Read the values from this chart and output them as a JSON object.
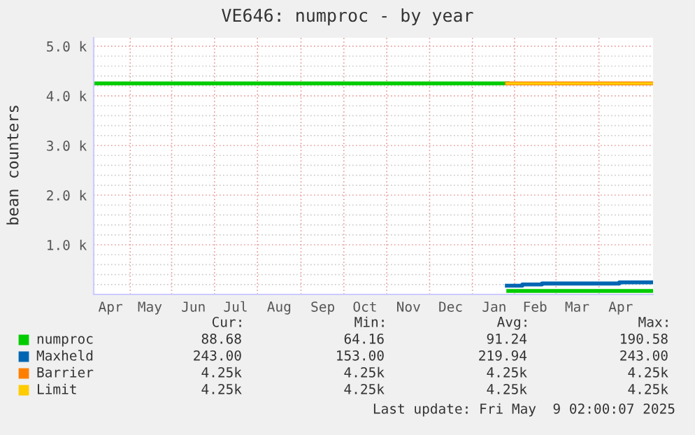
{
  "chart_data": {
    "type": "step",
    "title": "VE646: numproc - by year",
    "ylabel": "bean counters",
    "xlim": [
      "2024-04-06",
      "2025-05-09"
    ],
    "ylim": [
      0,
      5170
    ],
    "yticks": [
      {
        "value": 1000,
        "label": "1.0 k"
      },
      {
        "value": 2000,
        "label": "2.0 k"
      },
      {
        "value": 3000,
        "label": "3.0 k"
      },
      {
        "value": 4000,
        "label": "4.0 k"
      },
      {
        "value": 5000,
        "label": "5.0 k"
      }
    ],
    "xticks": [
      {
        "value": "2024-04-18",
        "label": "Apr"
      },
      {
        "value": "2024-05-16",
        "label": "May"
      },
      {
        "value": "2024-06-16",
        "label": "Jun"
      },
      {
        "value": "2024-07-16",
        "label": "Jul"
      },
      {
        "value": "2024-08-16",
        "label": "Aug"
      },
      {
        "value": "2024-09-16",
        "label": "Sep"
      },
      {
        "value": "2024-10-16",
        "label": "Oct"
      },
      {
        "value": "2024-11-16",
        "label": "Nov"
      },
      {
        "value": "2024-12-16",
        "label": "Dec"
      },
      {
        "value": "2025-01-16",
        "label": "Jan"
      },
      {
        "value": "2025-02-14",
        "label": "Feb"
      },
      {
        "value": "2025-03-16",
        "label": "Mar"
      },
      {
        "value": "2025-04-16",
        "label": "Apr"
      }
    ],
    "grid": true,
    "legend": "bottom",
    "series": [
      {
        "name": "numproc",
        "color": "#00cc00",
        "x": [
          "2024-04-06",
          "2025-01-25",
          "2025-01-25T12:00",
          "2025-01-26",
          "2025-05-09"
        ],
        "values": [
          4250,
          4250,
          null,
          70,
          70
        ]
      },
      {
        "name": "Maxheld",
        "color": "#0066b3",
        "x": [
          "2025-01-25",
          "2025-02-05",
          "2025-02-19",
          "2025-04-15",
          "2025-05-09"
        ],
        "values": [
          175,
          200,
          220,
          243,
          243
        ]
      },
      {
        "name": "Barrier",
        "color": "#ff8000",
        "x": [
          "2025-01-25",
          "2025-05-09"
        ],
        "values": [
          4250,
          4250
        ]
      },
      {
        "name": "Limit",
        "color": "#ffcc00",
        "x": [
          "2025-01-25",
          "2025-05-09"
        ],
        "values": [
          4250,
          4250
        ]
      }
    ],
    "annotations": [
      "Cur:",
      "Min:",
      "Avg:",
      "Max:",
      "88.68",
      "64.16",
      "91.24",
      "190.58",
      "243.00",
      "153.00",
      "219.94",
      "243.00",
      "4.25k",
      "4.25k",
      "4.25k",
      "4.25k",
      "4.25k",
      "4.25k",
      "4.25k",
      "4.25k",
      "Last update: Fri May  9 02:00:07 2025"
    ]
  }
}
